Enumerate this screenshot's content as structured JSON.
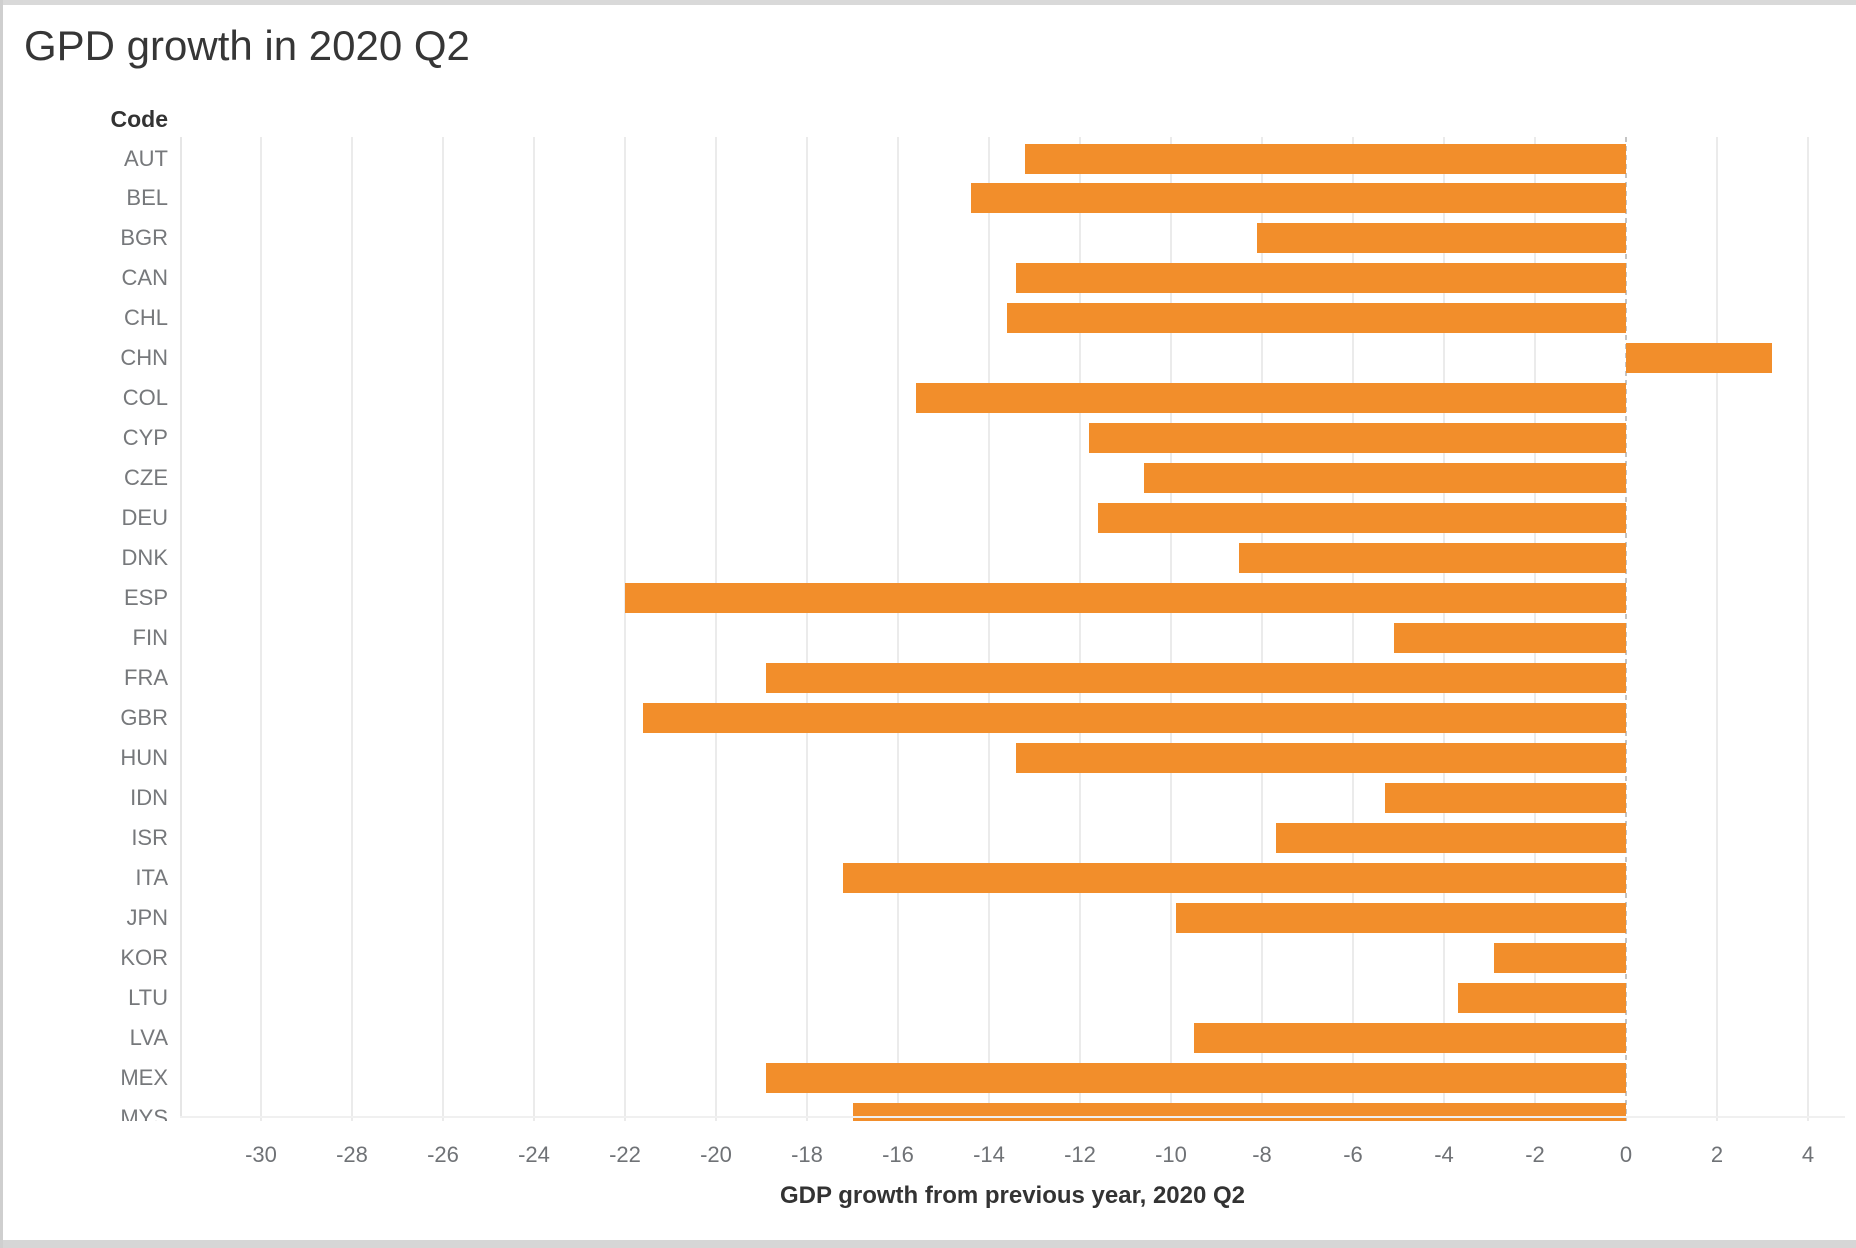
{
  "title": "GPD growth in 2020 Q2",
  "chart_data": {
    "type": "bar",
    "orientation": "horizontal",
    "title": "GPD growth in 2020 Q2",
    "y_axis_header": "Code",
    "xlabel": "GDP growth from previous year, 2020 Q2",
    "categories": [
      "AUT",
      "BEL",
      "BGR",
      "CAN",
      "CHL",
      "CHN",
      "COL",
      "CYP",
      "CZE",
      "DEU",
      "DNK",
      "ESP",
      "FIN",
      "FRA",
      "GBR",
      "HUN",
      "IDN",
      "ISR",
      "ITA",
      "JPN",
      "KOR",
      "LTU",
      "LVA",
      "MEX",
      "MYS"
    ],
    "values": [
      -13.2,
      -14.4,
      -8.1,
      -13.4,
      -13.6,
      3.2,
      -15.6,
      -11.8,
      -10.6,
      -11.6,
      -8.5,
      -22.0,
      -5.1,
      -18.9,
      -21.6,
      -13.4,
      -5.3,
      -7.7,
      -17.2,
      -9.9,
      -2.9,
      -3.7,
      -9.5,
      -18.9,
      -17.0
    ],
    "xticks": [
      -30,
      -28,
      -26,
      -24,
      -22,
      -20,
      -18,
      -16,
      -14,
      -12,
      -10,
      -8,
      -6,
      -4,
      -2,
      0,
      2,
      4
    ],
    "xlim": [
      -31.8,
      4.8
    ],
    "grid": true,
    "zero_line": "dashed",
    "last_row_clipped": true,
    "legend_position": "none",
    "bar_color": "#f28e2b",
    "colors": {
      "grid": "#ebebeb",
      "zero_line": "#c4c4c4",
      "tick_label": "#6f7276",
      "category_label": "#76787b",
      "title_text": "#363636",
      "axis_title_text": "#333333",
      "frame": "#d9d9d9"
    }
  }
}
